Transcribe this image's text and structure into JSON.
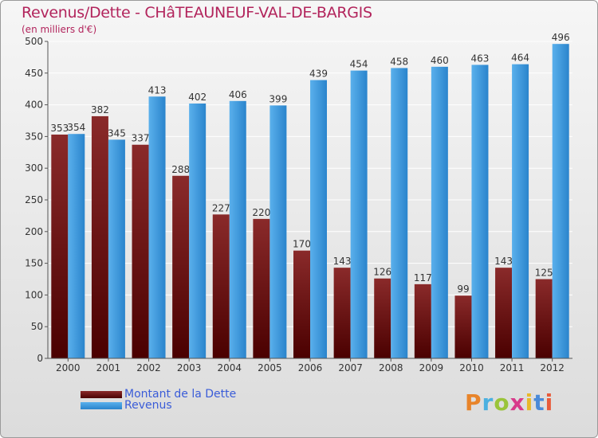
{
  "header": {
    "title": "Revenus/Dette - CHâTEAUNEUF-VAL-DE-BARGIS",
    "subtitle": "(en milliers d'€)"
  },
  "legend": {
    "items": [
      {
        "label": "Montant de la Dette",
        "color": "#7a1a1a"
      },
      {
        "label": "Revenus",
        "color": "#3a9ae0"
      }
    ]
  },
  "brand": {
    "letters": [
      "P",
      "r",
      "o",
      "x",
      "i",
      "t",
      "i"
    ],
    "colors": [
      "#e8842a",
      "#4ab0e0",
      "#9ac43a",
      "#d83a8a",
      "#e8b82a",
      "#4a8ad8",
      "#e85a3a"
    ]
  },
  "chart_data": {
    "type": "bar",
    "categories": [
      "2000",
      "2001",
      "2002",
      "2003",
      "2004",
      "2005",
      "2006",
      "2007",
      "2008",
      "2009",
      "2010",
      "2011",
      "2012"
    ],
    "series": [
      {
        "name": "Montant de la Dette",
        "color": "#7a1a1a",
        "values": [
          353,
          382,
          337,
          288,
          227,
          220,
          170,
          143,
          126,
          117,
          99,
          143,
          125
        ]
      },
      {
        "name": "Revenus",
        "color": "#3a9ae0",
        "values": [
          354,
          345,
          413,
          402,
          406,
          399,
          439,
          454,
          458,
          460,
          463,
          464,
          496
        ]
      }
    ],
    "ylim": [
      0,
      500
    ],
    "yticks": [
      0,
      50,
      100,
      150,
      200,
      250,
      300,
      350,
      400,
      450,
      500
    ],
    "grid": true,
    "legend_position": "bottom-left"
  }
}
